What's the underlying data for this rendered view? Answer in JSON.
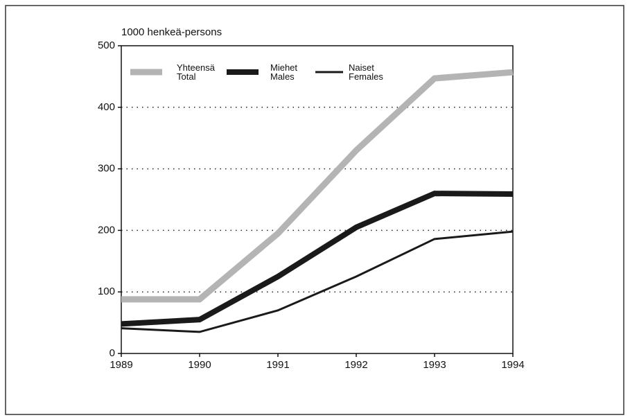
{
  "chart_data": {
    "type": "line",
    "y_label": "1000 henkeä-persons",
    "x": [
      1989,
      1990,
      1991,
      1992,
      1993,
      1994
    ],
    "xlim": [
      1989,
      1994
    ],
    "xticks": [
      1989,
      1990,
      1991,
      1992,
      1993,
      1994
    ],
    "ylim": [
      0,
      500
    ],
    "yticks": [
      0,
      100,
      200,
      300,
      400,
      500
    ],
    "grid": true,
    "series": [
      {
        "name": "Yhteensä\nTotal",
        "color": "#b4b4b4",
        "values": [
          88,
          88,
          195,
          330,
          447,
          457
        ]
      },
      {
        "name": "Miehet\nMales",
        "color": "#1a1a1a",
        "values": [
          48,
          55,
          125,
          205,
          260,
          259
        ]
      },
      {
        "name": "Naiset\nFemales",
        "color": "#1a1a1a",
        "values": [
          41,
          35,
          70,
          125,
          186,
          198
        ]
      }
    ]
  }
}
